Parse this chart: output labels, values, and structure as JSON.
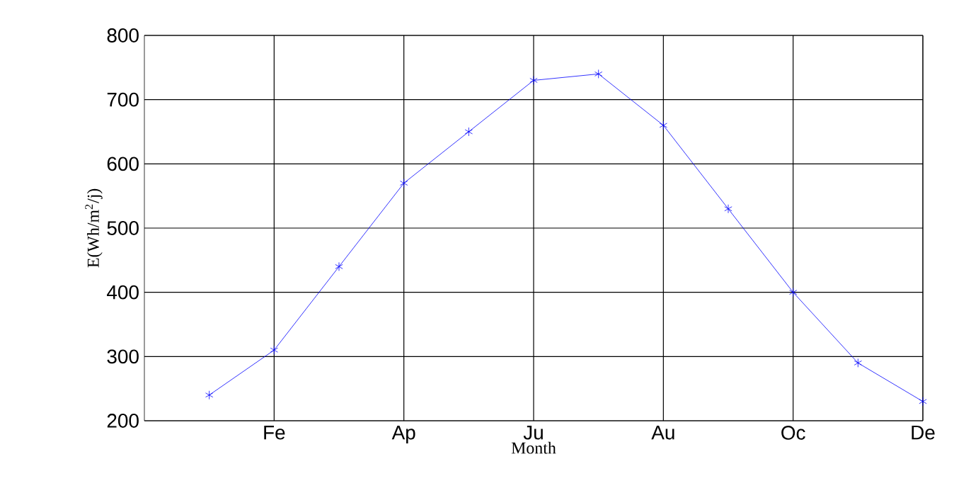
{
  "chart_data": {
    "type": "line",
    "xlabel": "Month",
    "ylabel": "E(Wh/m$^{2}$/j)",
    "categories": [
      null,
      "Fe",
      null,
      "Ap",
      null,
      "Ju",
      null,
      "Au",
      null,
      "Oc",
      null,
      "De"
    ],
    "series": [
      {
        "color": "#0000ff",
        "values": [
          240,
          310,
          440,
          570,
          650,
          730,
          740,
          660,
          530,
          400,
          290,
          230
        ]
      }
    ],
    "ylim": [
      200,
      800
    ],
    "yticks": [
      200,
      300,
      400,
      500,
      600,
      700,
      800
    ],
    "grid": true,
    "marker": "cross",
    "line_style": "solid"
  }
}
